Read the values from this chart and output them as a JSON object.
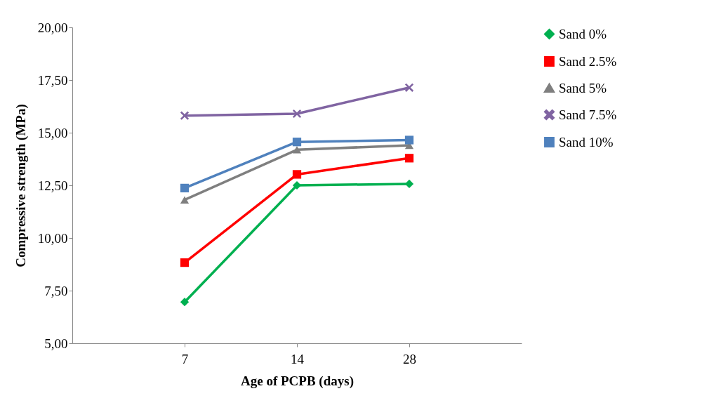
{
  "chart_data": {
    "type": "line",
    "xlabel": "Age of PCPB (days)",
    "ylabel": "Compressive strength (MPa)",
    "categories": [
      "7",
      "14",
      "28"
    ],
    "series": [
      {
        "name": "Sand 0%",
        "color": "#00b050",
        "marker": "diamond",
        "values": [
          6.96,
          12.5,
          12.57
        ]
      },
      {
        "name": "Sand 2.5%",
        "color": "#ff0000",
        "marker": "square",
        "values": [
          8.83,
          13.02,
          13.79
        ]
      },
      {
        "name": "Sand 5%",
        "color": "#7f7f7f",
        "marker": "triangle",
        "values": [
          11.81,
          14.19,
          14.4
        ]
      },
      {
        "name": "Sand 7.5%",
        "color": "#8064a2",
        "marker": "cross",
        "values": [
          15.81,
          15.9,
          17.14
        ]
      },
      {
        "name": "Sand 10%",
        "color": "#4f81bd",
        "marker": "square",
        "values": [
          12.37,
          14.56,
          14.65
        ]
      }
    ],
    "ylim": [
      5,
      20
    ],
    "yticks": [
      {
        "value": 5,
        "label": "5,00"
      },
      {
        "value": 7.5,
        "label": "7,50"
      },
      {
        "value": 10,
        "label": "10,00"
      },
      {
        "value": 12.5,
        "label": "12,50"
      },
      {
        "value": 15,
        "label": "15,00"
      },
      {
        "value": 17.5,
        "label": "17,50"
      },
      {
        "value": 20,
        "label": "20,00"
      }
    ],
    "grid": false,
    "legend": "right",
    "line_style": "solid"
  }
}
